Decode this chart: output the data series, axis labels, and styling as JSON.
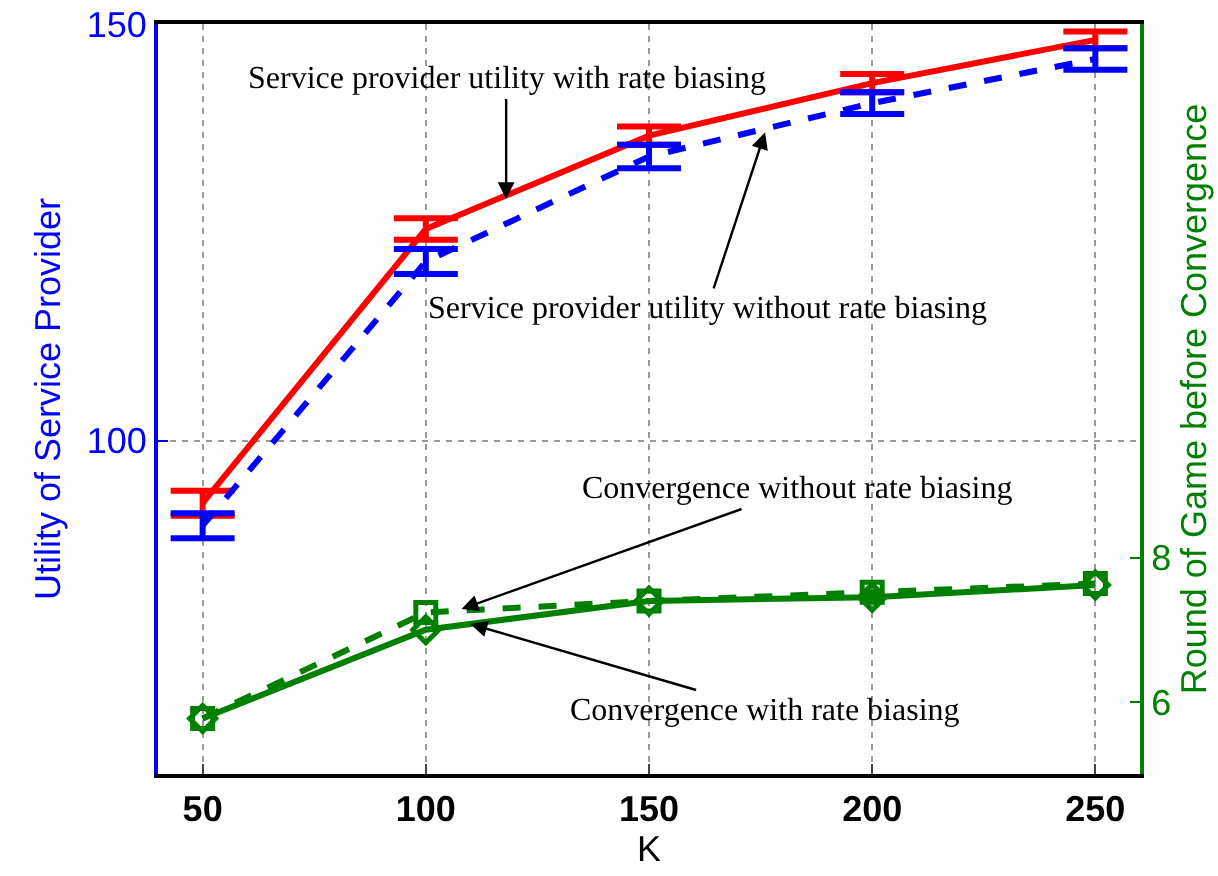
{
  "chart_data": {
    "type": "line",
    "xlabel": "K",
    "ylabel": "Utility of Service Provider",
    "y2label": "Round of Game before Convergence",
    "x": [
      50,
      100,
      150,
      200,
      250
    ],
    "series": [
      {
        "color": "#ff0000",
        "line_style": "solid",
        "marker": "none",
        "values": [
          92.5,
          125.4,
          136.6,
          142.9,
          148.1
        ],
        "errors": [
          1.5,
          1.3,
          1.1,
          1.1,
          1.0
        ]
      },
      {
        "color": "#0000ff",
        "line_style": "dashed",
        "marker": "none",
        "values": [
          89.8,
          121.5,
          134.1,
          140.5,
          145.8
        ],
        "errors": [
          1.5,
          1.5,
          1.4,
          1.3,
          1.3
        ]
      },
      {
        "color": "#008000",
        "line_style": "solid",
        "marker": "diamond",
        "axis": "y2",
        "values": [
          5.77,
          7.0,
          7.4,
          7.45,
          7.62
        ]
      },
      {
        "color": "#008000",
        "line_style": "dashed",
        "marker": "square",
        "axis": "y2",
        "values": [
          5.77,
          7.24,
          7.4,
          7.52,
          7.64
        ]
      }
    ],
    "xlim": [
      40,
      260
    ],
    "xticks": [
      50,
      100,
      150,
      200,
      250
    ],
    "ylim": [
      60,
      150
    ],
    "yticks": [
      100,
      150
    ],
    "y2lim": [
      5,
      15.4
    ],
    "y2ticks": [
      6,
      8
    ],
    "grid": true,
    "annotations": [
      {
        "text": "Service provider utility with rate biasing",
        "x": 118,
        "y": 129
      },
      {
        "text": "Service provider utility without rate biasing",
        "x": 176,
        "y": 137
      },
      {
        "text": "Convergence without rate biasing",
        "x": 108,
        "y": 79.8
      },
      {
        "text": "Convergence with rate biasing",
        "x": 110,
        "y": 78
      }
    ]
  }
}
